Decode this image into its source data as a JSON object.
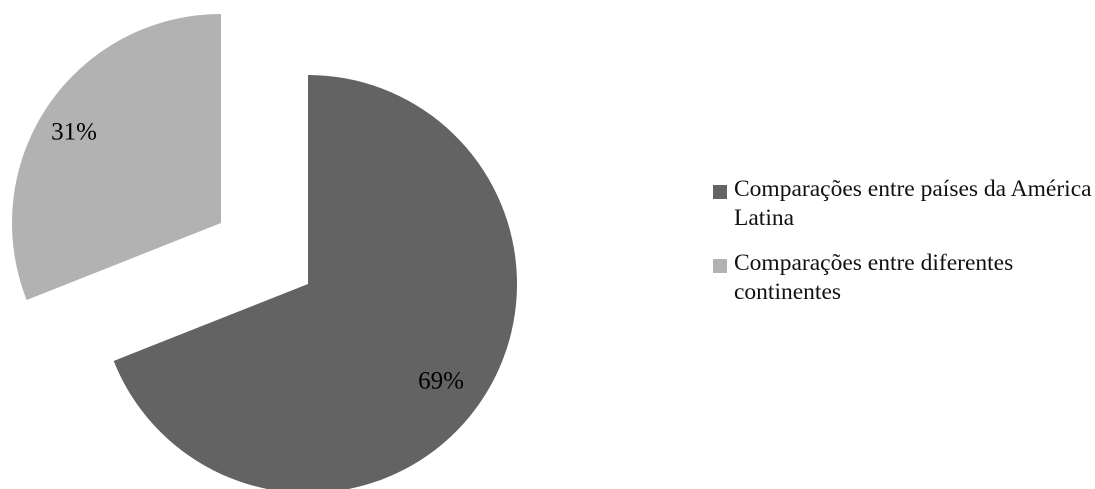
{
  "chart_data": {
    "type": "pie",
    "title": "",
    "slices": [
      {
        "label": "Comparações entre países da América Latina",
        "value": 69,
        "display": "69%",
        "color": "#636363"
      },
      {
        "label": "Comparações entre diferentes continentes",
        "value": 31,
        "display": "31%",
        "color": "#b2b2b2"
      }
    ],
    "exploded": true,
    "legend_position": "right"
  }
}
